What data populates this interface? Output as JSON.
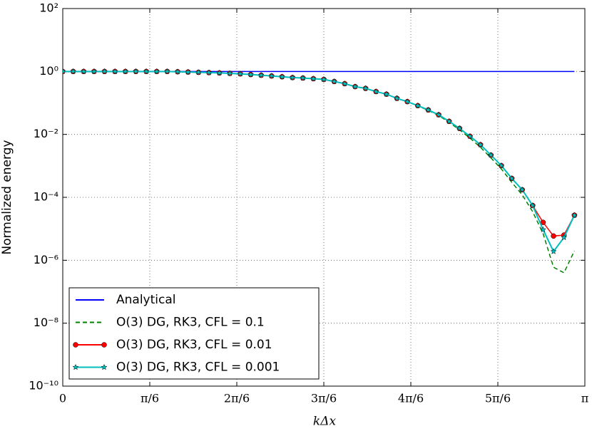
{
  "chart_data": {
    "type": "line",
    "xlabel": "kΔx",
    "ylabel": "Normalized energy",
    "x": [
      0,
      0.0628,
      0.1257,
      0.1885,
      0.2513,
      0.3142,
      0.377,
      0.4398,
      0.5027,
      0.5655,
      0.6283,
      0.6912,
      0.754,
      0.8168,
      0.8796,
      0.9425,
      1.0053,
      1.0681,
      1.131,
      1.1938,
      1.2566,
      1.3195,
      1.3823,
      1.4451,
      1.508,
      1.5708,
      1.6336,
      1.6965,
      1.7593,
      1.8221,
      1.885,
      1.9478,
      2.0106,
      2.0735,
      2.1363,
      2.1991,
      2.2619,
      2.3248,
      2.3876,
      2.4504,
      2.5133,
      2.5761,
      2.6389,
      2.7018,
      2.7646,
      2.8274,
      2.8903,
      2.9531,
      3.0159,
      3.0788
    ],
    "series": [
      {
        "name": "Analytical",
        "color": "#0000ff",
        "linestyle": "solid",
        "marker": "none",
        "values": [
          1,
          1,
          1,
          1,
          1,
          1,
          1,
          1,
          1,
          1,
          1,
          1,
          1,
          1,
          1,
          1,
          1,
          1,
          1,
          1,
          1,
          1,
          1,
          1,
          1,
          1,
          1,
          1,
          1,
          1,
          1,
          1,
          1,
          1,
          1,
          1,
          1,
          1,
          1,
          1,
          1,
          1,
          1,
          1,
          1,
          1,
          1,
          1,
          1,
          1
        ]
      },
      {
        "name": "O(3) DG, RK3, CFL = 0.1",
        "color": "#008000",
        "linestyle": "dashed",
        "marker": "none",
        "values": [
          1,
          1,
          1,
          1,
          1,
          1,
          1,
          1,
          1,
          1,
          1,
          0.98,
          0.96,
          0.94,
          0.92,
          0.9,
          0.87,
          0.84,
          0.8,
          0.76,
          0.72,
          0.68,
          0.64,
          0.62,
          0.59,
          0.56,
          0.48,
          0.41,
          0.33,
          0.29,
          0.23,
          0.19,
          0.14,
          0.11,
          0.08,
          0.058,
          0.04,
          0.024,
          0.014,
          0.0076,
          0.0039,
          0.0018,
          0.0008,
          0.0003,
          0.00012,
          3.5e-05,
          7e-06,
          6e-07,
          4e-07,
          2e-06
        ]
      },
      {
        "name": "O(3) DG, RK3, CFL = 0.01",
        "color": "#ff0000",
        "linestyle": "solid",
        "marker": "circle",
        "values": [
          1,
          1,
          1,
          1,
          1,
          1,
          1,
          1,
          1,
          1,
          1,
          0.98,
          0.96,
          0.94,
          0.92,
          0.9,
          0.87,
          0.84,
          0.8,
          0.76,
          0.72,
          0.68,
          0.64,
          0.62,
          0.59,
          0.56,
          0.48,
          0.41,
          0.33,
          0.29,
          0.23,
          0.19,
          0.14,
          0.11,
          0.082,
          0.06,
          0.042,
          0.026,
          0.0155,
          0.0087,
          0.0047,
          0.0022,
          0.00102,
          0.0004,
          0.000174,
          5.5e-05,
          1.6e-05,
          5.9e-06,
          6.3e-06,
          2.7e-05
        ]
      },
      {
        "name": "O(3) DG, RK3, CFL = 0.001",
        "color": "#00bfbf",
        "linestyle": "solid",
        "marker": "star",
        "values": [
          1,
          1,
          1,
          1,
          1,
          1,
          1,
          1,
          1,
          1,
          1,
          0.98,
          0.96,
          0.94,
          0.92,
          0.9,
          0.87,
          0.84,
          0.8,
          0.76,
          0.72,
          0.68,
          0.64,
          0.62,
          0.59,
          0.56,
          0.48,
          0.41,
          0.33,
          0.29,
          0.23,
          0.19,
          0.14,
          0.11,
          0.082,
          0.06,
          0.042,
          0.026,
          0.0155,
          0.0087,
          0.0047,
          0.0022,
          0.00102,
          0.0004,
          0.000174,
          5.5e-05,
          9.4e-06,
          1.9e-06,
          5.3e-06,
          2.7e-05
        ]
      }
    ],
    "xlim": [
      0,
      3.1416
    ],
    "xticks": [
      0,
      {
        "value": 0.5236,
        "label": "π/6"
      },
      {
        "value": 1.0472,
        "label": "2π/6"
      },
      {
        "value": 1.5708,
        "label": "3π/6"
      },
      {
        "value": 2.0944,
        "label": "4π/6"
      },
      {
        "value": 2.618,
        "label": "5π/6"
      },
      {
        "value": 3.1416,
        "label": "π"
      }
    ],
    "ylim": [
      1e-10,
      100
    ],
    "yscale": "log",
    "yticks": [
      {
        "value": 1e-10,
        "label": "10⁻¹⁰"
      },
      {
        "value": 1e-08,
        "label": "10⁻⁸"
      },
      {
        "value": 1e-06,
        "label": "10⁻⁶"
      },
      {
        "value": 0.0001,
        "label": "10⁻⁴"
      },
      {
        "value": 0.01,
        "label": "10⁻²"
      },
      {
        "value": 1,
        "label": "10⁰"
      },
      {
        "value": 100,
        "label": "10²"
      }
    ],
    "grid": true,
    "legend": "lower left"
  }
}
